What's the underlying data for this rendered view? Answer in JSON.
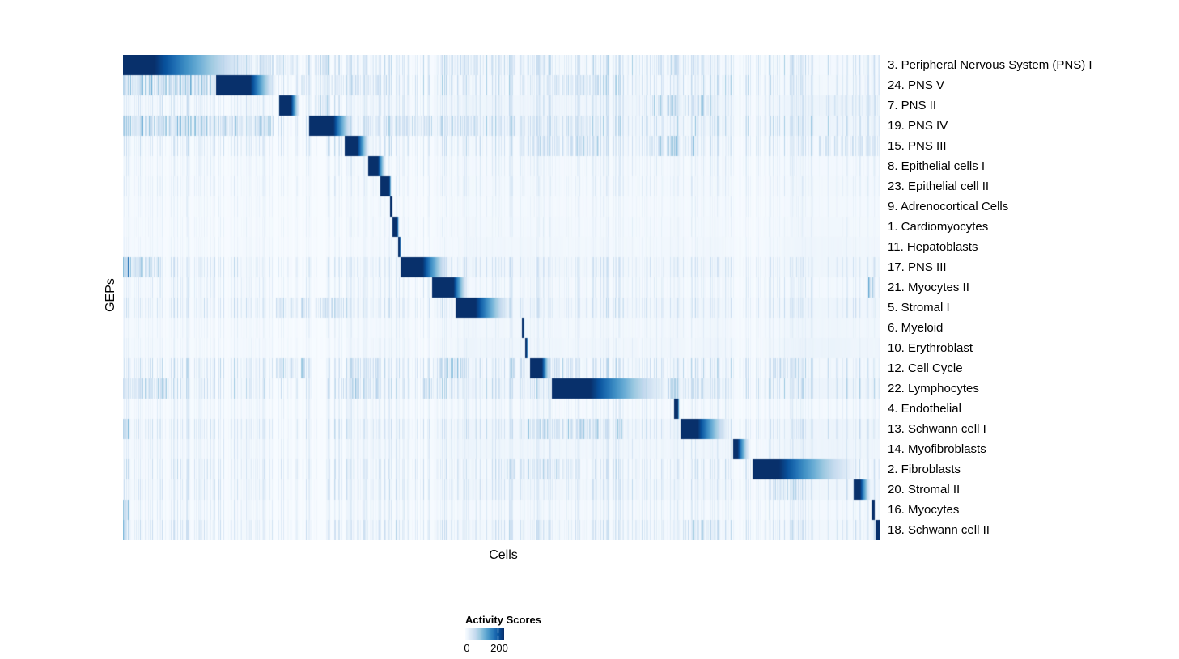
{
  "chart_data": {
    "type": "heatmap",
    "xlabel": "Cells",
    "ylabel": "GEPs",
    "background": "#ffffff",
    "colormap": {
      "name": "Blues",
      "stops": [
        "#f7fbff",
        "#deebf7",
        "#c6dbef",
        "#9ecae1",
        "#6baed6",
        "#4292c6",
        "#2171b5",
        "#08519c",
        "#08306b"
      ]
    },
    "legend": {
      "title": "Activity Scores",
      "ticks": [
        {
          "label": "0",
          "pos": 0.03
        },
        {
          "label": "200",
          "pos": 0.854
        }
      ]
    },
    "seed": 1234,
    "rows": [
      {
        "label": "3. Peripheral Nervous System (PNS) I",
        "block": [
          0,
          0.041,
          0.179
        ],
        "noise": 0.38,
        "hotspots": [
          [
            0.18,
            0.235,
            0.4
          ],
          [
            0.24,
            0.275,
            0.5
          ],
          [
            0.42,
            0.56,
            0.25
          ],
          [
            0.7,
            0.79,
            0.3
          ]
        ]
      },
      {
        "label": "24. PNS V",
        "block": [
          0.123,
          0.168,
          0.204
        ],
        "noise": 0.38,
        "hotspots": [
          [
            0,
            0.12,
            0.55
          ],
          [
            0.23,
            0.35,
            0.3
          ],
          [
            0.56,
            0.64,
            0.3
          ]
        ]
      },
      {
        "label": "7. PNS II",
        "block": [
          0.206,
          0.222,
          0.234
        ],
        "noise": 0.3,
        "hotspots": [
          [
            0.24,
            0.27,
            0.45
          ],
          [
            0.7,
            0.785,
            0.5
          ],
          [
            0.93,
            1,
            0.3
          ]
        ]
      },
      {
        "label": "19. PNS IV",
        "block": [
          0.246,
          0.278,
          0.306
        ],
        "noise": 0.42,
        "hotspots": [
          [
            0,
            0.2,
            0.55
          ],
          [
            0.123,
            0.15,
            0.5
          ],
          [
            0.32,
            0.55,
            0.35
          ],
          [
            0.56,
            0.63,
            0.3
          ]
        ]
      },
      {
        "label": "15. PNS III",
        "block": [
          0.293,
          0.31,
          0.327
        ],
        "noise": 0.32,
        "hotspots": [
          [
            0.52,
            0.63,
            0.4
          ],
          [
            0.695,
            0.755,
            0.5
          ],
          [
            0.92,
            1,
            0.38
          ]
        ]
      },
      {
        "label": "8. Epithelial cells I",
        "block": [
          0.324,
          0.337,
          0.348
        ],
        "noise": 0.18,
        "hotspots": []
      },
      {
        "label": "23. Epithelial cell II",
        "block": [
          0.34,
          0.352,
          0.355
        ],
        "noise": 0.18,
        "hotspots": []
      },
      {
        "label": "9. Adrenocortical Cells",
        "block": [
          0.353,
          0.3555,
          0.356
        ],
        "noise": 0.12,
        "hotspots": []
      },
      {
        "label": "1. Cardiomyocytes",
        "block": [
          0.356,
          0.3625,
          0.365
        ],
        "noise": 0.12,
        "hotspots": []
      },
      {
        "label": "11. Hepatoblasts",
        "block": [
          0.3636,
          0.366,
          0.367
        ],
        "noise": 0.1,
        "hotspots": []
      },
      {
        "label": "17. PNS III",
        "block": [
          0.367,
          0.396,
          0.434
        ],
        "noise": 0.3,
        "hotspots": [
          [
            0,
            0.008,
            0.95
          ],
          [
            0,
            0.05,
            0.5
          ]
        ]
      },
      {
        "label": "21. Myocytes II",
        "block": [
          0.408,
          0.437,
          0.457
        ],
        "noise": 0.22,
        "hotspots": [
          [
            0.985,
            0.993,
            0.75
          ]
        ]
      },
      {
        "label": "5. Stromal I",
        "block": [
          0.44,
          0.466,
          0.5155
        ],
        "noise": 0.3,
        "hotspots": [
          [
            0.2,
            0.3,
            0.35
          ]
        ]
      },
      {
        "label": "6. Myeloid",
        "block": [
          0.527,
          0.5295,
          0.531
        ],
        "noise": 0.13,
        "hotspots": []
      },
      {
        "label": "10. Erythroblast",
        "block": [
          0.5316,
          0.534,
          0.535
        ],
        "noise": 0.13,
        "hotspots": []
      },
      {
        "label": "12. Cell Cycle",
        "block": [
          0.538,
          0.554,
          0.566
        ],
        "noise": 0.36,
        "hotspots": [
          [
            0.2,
            0.24,
            0.5
          ],
          [
            0.3,
            0.34,
            0.5
          ],
          [
            0.41,
            0.45,
            0.55
          ],
          [
            0.513,
            0.534,
            0.55
          ],
          [
            0.55,
            0.6,
            0.4
          ],
          [
            0.86,
            0.9,
            0.4
          ]
        ]
      },
      {
        "label": "22. Lymphocytes",
        "block": [
          0.567,
          0.618,
          0.725
        ],
        "noise": 0.4,
        "hotspots": [
          [
            0,
            0.06,
            0.4
          ],
          [
            0.29,
            0.34,
            0.5
          ],
          [
            0.395,
            0.42,
            0.45
          ],
          [
            0.72,
            0.79,
            0.45
          ]
        ]
      },
      {
        "label": "4. Endothelial",
        "block": [
          0.7283,
          0.7337,
          0.736
        ],
        "noise": 0.18,
        "hotspots": []
      },
      {
        "label": "13. Schwann cell I",
        "block": [
          0.737,
          0.76,
          0.8043
        ],
        "noise": 0.32,
        "hotspots": [
          [
            0,
            0.008,
            0.8
          ],
          [
            0.52,
            0.66,
            0.45
          ]
        ]
      },
      {
        "label": "14. Myofibroblasts",
        "block": [
          0.8064,
          0.8128,
          0.83
        ],
        "noise": 0.2,
        "hotspots": []
      },
      {
        "label": "2. Fibroblasts",
        "block": [
          0.832,
          0.8674,
          0.9765
        ],
        "noise": 0.32,
        "hotspots": [
          [
            0.5,
            0.6,
            0.35
          ]
        ]
      },
      {
        "label": "20. Stromal II",
        "block": [
          0.966,
          0.975,
          0.99
        ],
        "noise": 0.28,
        "hotspots": [
          [
            0.86,
            0.9,
            0.45
          ]
        ]
      },
      {
        "label": "16. Myocytes",
        "block": [
          0.99,
          0.994,
          0.9945
        ],
        "noise": 0.2,
        "hotspots": [
          [
            0,
            0.008,
            0.75
          ]
        ]
      },
      {
        "label": "18. Schwann cell II",
        "block": [
          0.9947,
          1,
          1
        ],
        "noise": 0.32,
        "hotspots": [
          [
            0.74,
            0.79,
            0.55
          ],
          [
            0,
            0.005,
            0.95
          ]
        ]
      }
    ]
  }
}
